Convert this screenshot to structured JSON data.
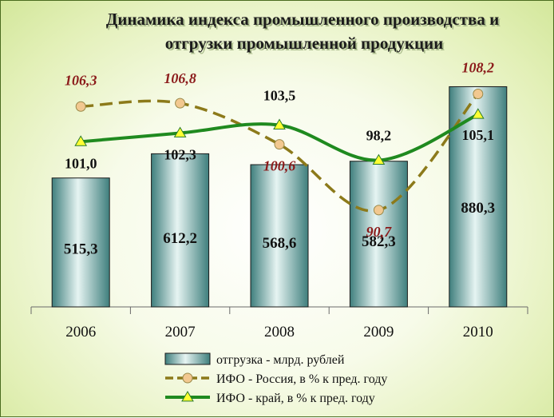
{
  "chart_data": {
    "type": "bar",
    "title": [
      "Динамика индекса промышленного производства и",
      "отгрузки промышленной продукции"
    ],
    "categories": [
      "2006",
      "2007",
      "2008",
      "2009",
      "2010"
    ],
    "series": [
      {
        "name": "отгрузка - млрд. рублей",
        "kind": "bar",
        "values": [
          515.3,
          612.2,
          568.6,
          582.3,
          880.3
        ],
        "labels": [
          "515,3",
          "612,2",
          "568,6",
          "582,3",
          "880,3"
        ],
        "color": "#4f8f8d"
      },
      {
        "name": "ИФО - Россия, в % к пред. году",
        "kind": "line",
        "style": "dashed",
        "marker": "circle",
        "values": [
          106.3,
          106.8,
          100.6,
          90.7,
          108.2
        ],
        "labels": [
          "106,3",
          "106,8",
          "100,6",
          "90,7",
          "108,2"
        ],
        "color": "#8c7a1a",
        "marker_color": "#f2c890",
        "label_color": "#8b1a1a"
      },
      {
        "name": "ИФО - край, в % к пред. году",
        "kind": "line",
        "style": "solid",
        "marker": "triangle",
        "values": [
          101.0,
          102.3,
          103.5,
          98.2,
          105.1
        ],
        "labels": [
          "101,0",
          "102,3",
          "103,5",
          "98,2",
          "105,1"
        ],
        "color": "#1f8a1f",
        "marker_color": "#ffff33"
      }
    ],
    "bar_axis_range": [
      0,
      1000
    ],
    "line_axis_range": [
      50,
      115
    ],
    "axis_visible": false,
    "grid": false,
    "legend_position": "bottom"
  }
}
